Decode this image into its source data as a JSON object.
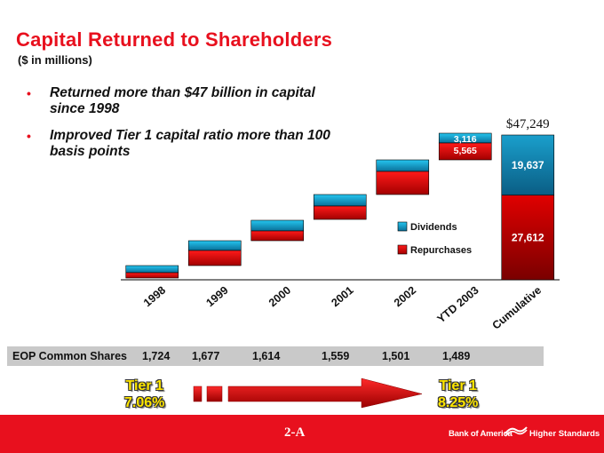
{
  "header": {
    "title": "Capital Returned to Shareholders",
    "subtitle": "($ in millions)"
  },
  "bullets": [
    "Returned more than $47 billion in capital since 1998",
    "Improved Tier 1 capital ratio more than 100 basis points"
  ],
  "chart_data": {
    "type": "bar",
    "subtype": "waterfall-stacked",
    "categories": [
      "1998",
      "1999",
      "2000",
      "2001",
      "2002",
      "YTD 2003",
      "Cumulative"
    ],
    "series": [
      {
        "name": "Dividends",
        "color": "#1fb4dd",
        "values": [
          null,
          null,
          null,
          null,
          null,
          3116,
          19637
        ]
      },
      {
        "name": "Repurchases",
        "color": "#e00000",
        "values": [
          null,
          null,
          null,
          null,
          null,
          5565,
          27612
        ]
      }
    ],
    "data_labels": {
      "YTD 2003": {
        "Dividends": "3,116",
        "Repurchases": "5,565"
      },
      "Cumulative": {
        "Dividends": "19,637",
        "Repurchases": "27,612",
        "total": "$47,249"
      }
    },
    "total_label": "$47,249",
    "legend": {
      "position": "center-right",
      "items": [
        "Dividends",
        "Repurchases"
      ]
    },
    "grid": false
  },
  "eop": {
    "label": "EOP Common Shares",
    "values": [
      "1,724",
      "1,677",
      "1,614",
      "1,559",
      "1,501",
      "1,489"
    ]
  },
  "tier1": {
    "start_label": "Tier 1",
    "start_value": "7.06%",
    "end_label": "Tier 1",
    "end_value": "8.25%"
  },
  "footer": {
    "page_number": "2-A",
    "brand": "Bank of America",
    "tagline": "Higher Standards"
  },
  "colors": {
    "accent_red": "#e8101e",
    "dividends": "#1fb4dd",
    "repurchases": "#e00000",
    "tier_yellow": "#ffe600"
  }
}
